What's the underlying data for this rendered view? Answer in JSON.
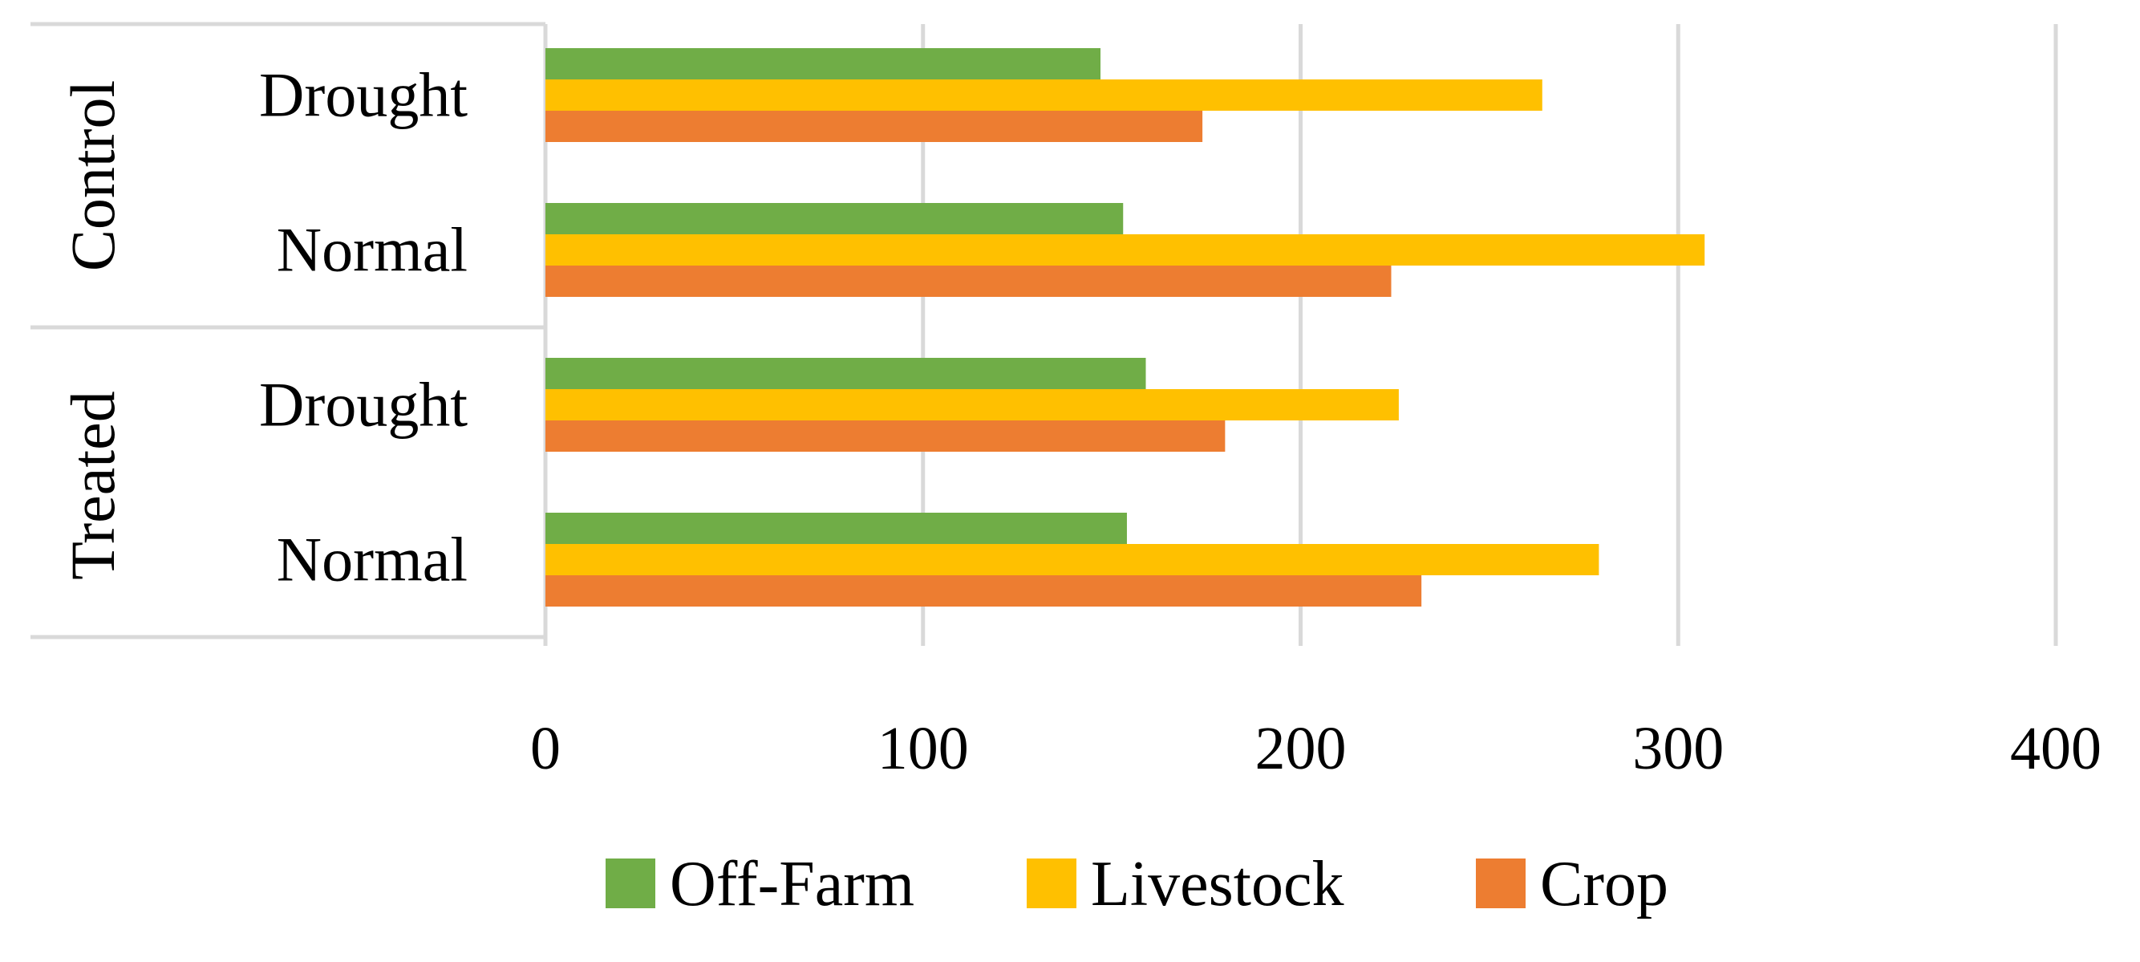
{
  "chart_data": {
    "type": "bar",
    "orientation": "horizontal",
    "title": "",
    "xlabel": "",
    "ylabel": "",
    "xlim": [
      0,
      400
    ],
    "x_ticks": [
      "0",
      "100",
      "200",
      "300",
      "400"
    ],
    "grid": true,
    "legend_position": "bottom",
    "groups": [
      {
        "name": "Control",
        "categories": [
          "Drought",
          "Normal"
        ]
      },
      {
        "name": "Treated",
        "categories": [
          "Drought",
          "Normal"
        ]
      }
    ],
    "categories": [
      "Control / Drought",
      "Control / Normal",
      "Treated / Drought",
      "Treated / Normal"
    ],
    "series": [
      {
        "name": "Off-Farm",
        "color": "#70ad47",
        "values": [
          147,
          153,
          159,
          154
        ]
      },
      {
        "name": "Livestock",
        "color": "#ffc000",
        "values": [
          264,
          307,
          226,
          279
        ]
      },
      {
        "name": "Crop",
        "color": "#ed7d31",
        "values": [
          174,
          224,
          180,
          232
        ]
      }
    ]
  }
}
